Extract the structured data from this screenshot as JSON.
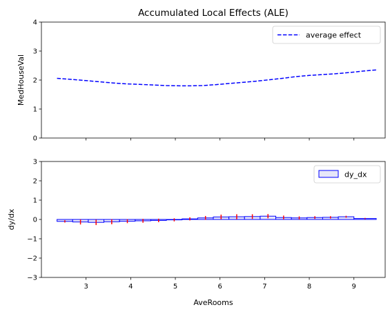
{
  "chart_data": [
    {
      "type": "line",
      "title": "Accumulated Local Effects (ALE)",
      "ylabel": "MedHouseVal",
      "xlabel": "",
      "xlim": [
        2.0,
        9.7
      ],
      "ylim": [
        0,
        4
      ],
      "yticks": [
        "0",
        "1",
        "2",
        "3",
        "4"
      ],
      "grid": false,
      "legend_position": "top-right",
      "series": [
        {
          "name": "average effect",
          "color": "#0000ff",
          "style": "dashed",
          "x": [
            2.35,
            2.7,
            3.0,
            3.3,
            3.6,
            3.9,
            4.2,
            4.5,
            4.8,
            5.1,
            5.3,
            5.6,
            5.9,
            6.2,
            6.5,
            6.8,
            7.1,
            7.4,
            7.7,
            8.0,
            8.3,
            8.6,
            8.9,
            9.2,
            9.5
          ],
          "y": [
            2.06,
            2.02,
            1.98,
            1.94,
            1.9,
            1.87,
            1.85,
            1.83,
            1.81,
            1.8,
            1.8,
            1.81,
            1.84,
            1.88,
            1.92,
            1.96,
            2.01,
            2.06,
            2.12,
            2.16,
            2.19,
            2.22,
            2.26,
            2.31,
            2.35
          ]
        }
      ]
    },
    {
      "type": "bar",
      "title": "",
      "ylabel": "dy/dx",
      "xlabel": "AveRooms",
      "xlim": [
        2.0,
        9.7
      ],
      "ylim": [
        -3,
        3
      ],
      "xticks": [
        "3",
        "4",
        "5",
        "6",
        "7",
        "8",
        "9"
      ],
      "yticks": [
        "−3",
        "−2",
        "−1",
        "0",
        "1",
        "2",
        "3"
      ],
      "grid": false,
      "legend_position": "top-right",
      "series": [
        {
          "name": "dy_dx",
          "fill": "#e6e6f8",
          "edge": "#0000ff",
          "bins": [
            {
              "x0": 2.35,
              "x1": 2.7,
              "value": -0.1,
              "err": 0.06
            },
            {
              "x0": 2.7,
              "x1": 3.05,
              "value": -0.13,
              "err": 0.13
            },
            {
              "x0": 3.05,
              "x1": 3.4,
              "value": -0.15,
              "err": 0.14
            },
            {
              "x0": 3.4,
              "x1": 3.75,
              "value": -0.12,
              "err": 0.13
            },
            {
              "x0": 3.75,
              "x1": 4.1,
              "value": -0.09,
              "err": 0.1
            },
            {
              "x0": 4.1,
              "x1": 4.45,
              "value": -0.07,
              "err": 0.1
            },
            {
              "x0": 4.45,
              "x1": 4.8,
              "value": -0.05,
              "err": 0.09
            },
            {
              "x0": 4.8,
              "x1": 5.15,
              "value": -0.02,
              "err": 0.08
            },
            {
              "x0": 5.15,
              "x1": 5.5,
              "value": 0.03,
              "err": 0.08
            },
            {
              "x0": 5.5,
              "x1": 5.85,
              "value": 0.08,
              "err": 0.1
            },
            {
              "x0": 5.85,
              "x1": 6.2,
              "value": 0.13,
              "err": 0.12
            },
            {
              "x0": 6.2,
              "x1": 6.55,
              "value": 0.14,
              "err": 0.13
            },
            {
              "x0": 6.55,
              "x1": 6.9,
              "value": 0.15,
              "err": 0.12
            },
            {
              "x0": 6.9,
              "x1": 7.25,
              "value": 0.17,
              "err": 0.11
            },
            {
              "x0": 7.25,
              "x1": 7.6,
              "value": 0.1,
              "err": 0.1
            },
            {
              "x0": 7.6,
              "x1": 7.95,
              "value": 0.08,
              "err": 0.08
            },
            {
              "x0": 7.95,
              "x1": 8.3,
              "value": 0.1,
              "err": 0.07
            },
            {
              "x0": 8.3,
              "x1": 8.65,
              "value": 0.11,
              "err": 0.06
            },
            {
              "x0": 8.65,
              "x1": 9.0,
              "value": 0.14,
              "err": 0.05
            },
            {
              "x0": 9.0,
              "x1": 9.5,
              "value": 0.05,
              "err": 0.03
            }
          ],
          "error_color": "#ff0000"
        }
      ]
    }
  ]
}
